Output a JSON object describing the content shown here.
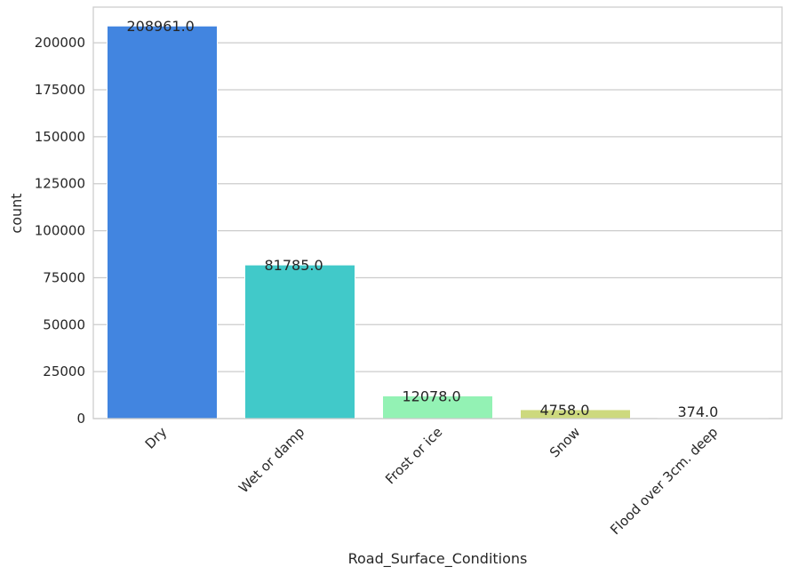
{
  "chart_data": {
    "type": "bar",
    "title": "",
    "xlabel": "Road_Surface_Conditions",
    "ylabel": "count",
    "categories": [
      "Dry",
      "Wet or damp",
      "Frost or ice",
      "Snow",
      "Flood over 3cm. deep"
    ],
    "values": [
      208961.0,
      81785.0,
      12078.0,
      4758.0,
      374.0
    ],
    "data_labels": [
      "208961.0",
      "81785.0",
      "12078.0",
      "4758.0",
      "374.0"
    ],
    "bar_colors": [
      "#4285e0",
      "#41c9c9",
      "#93f2b4",
      "#cdd97e",
      "#f0a868"
    ],
    "ylim": [
      0,
      219000
    ],
    "yticks": [
      0,
      25000,
      50000,
      75000,
      100000,
      125000,
      150000,
      175000,
      200000
    ],
    "ytick_labels": [
      "0",
      "25000",
      "50000",
      "75000",
      "100000",
      "125000",
      "150000",
      "175000",
      "200000"
    ],
    "xtick_rotation_deg": 45,
    "grid": "horizontal",
    "legend": "none"
  }
}
